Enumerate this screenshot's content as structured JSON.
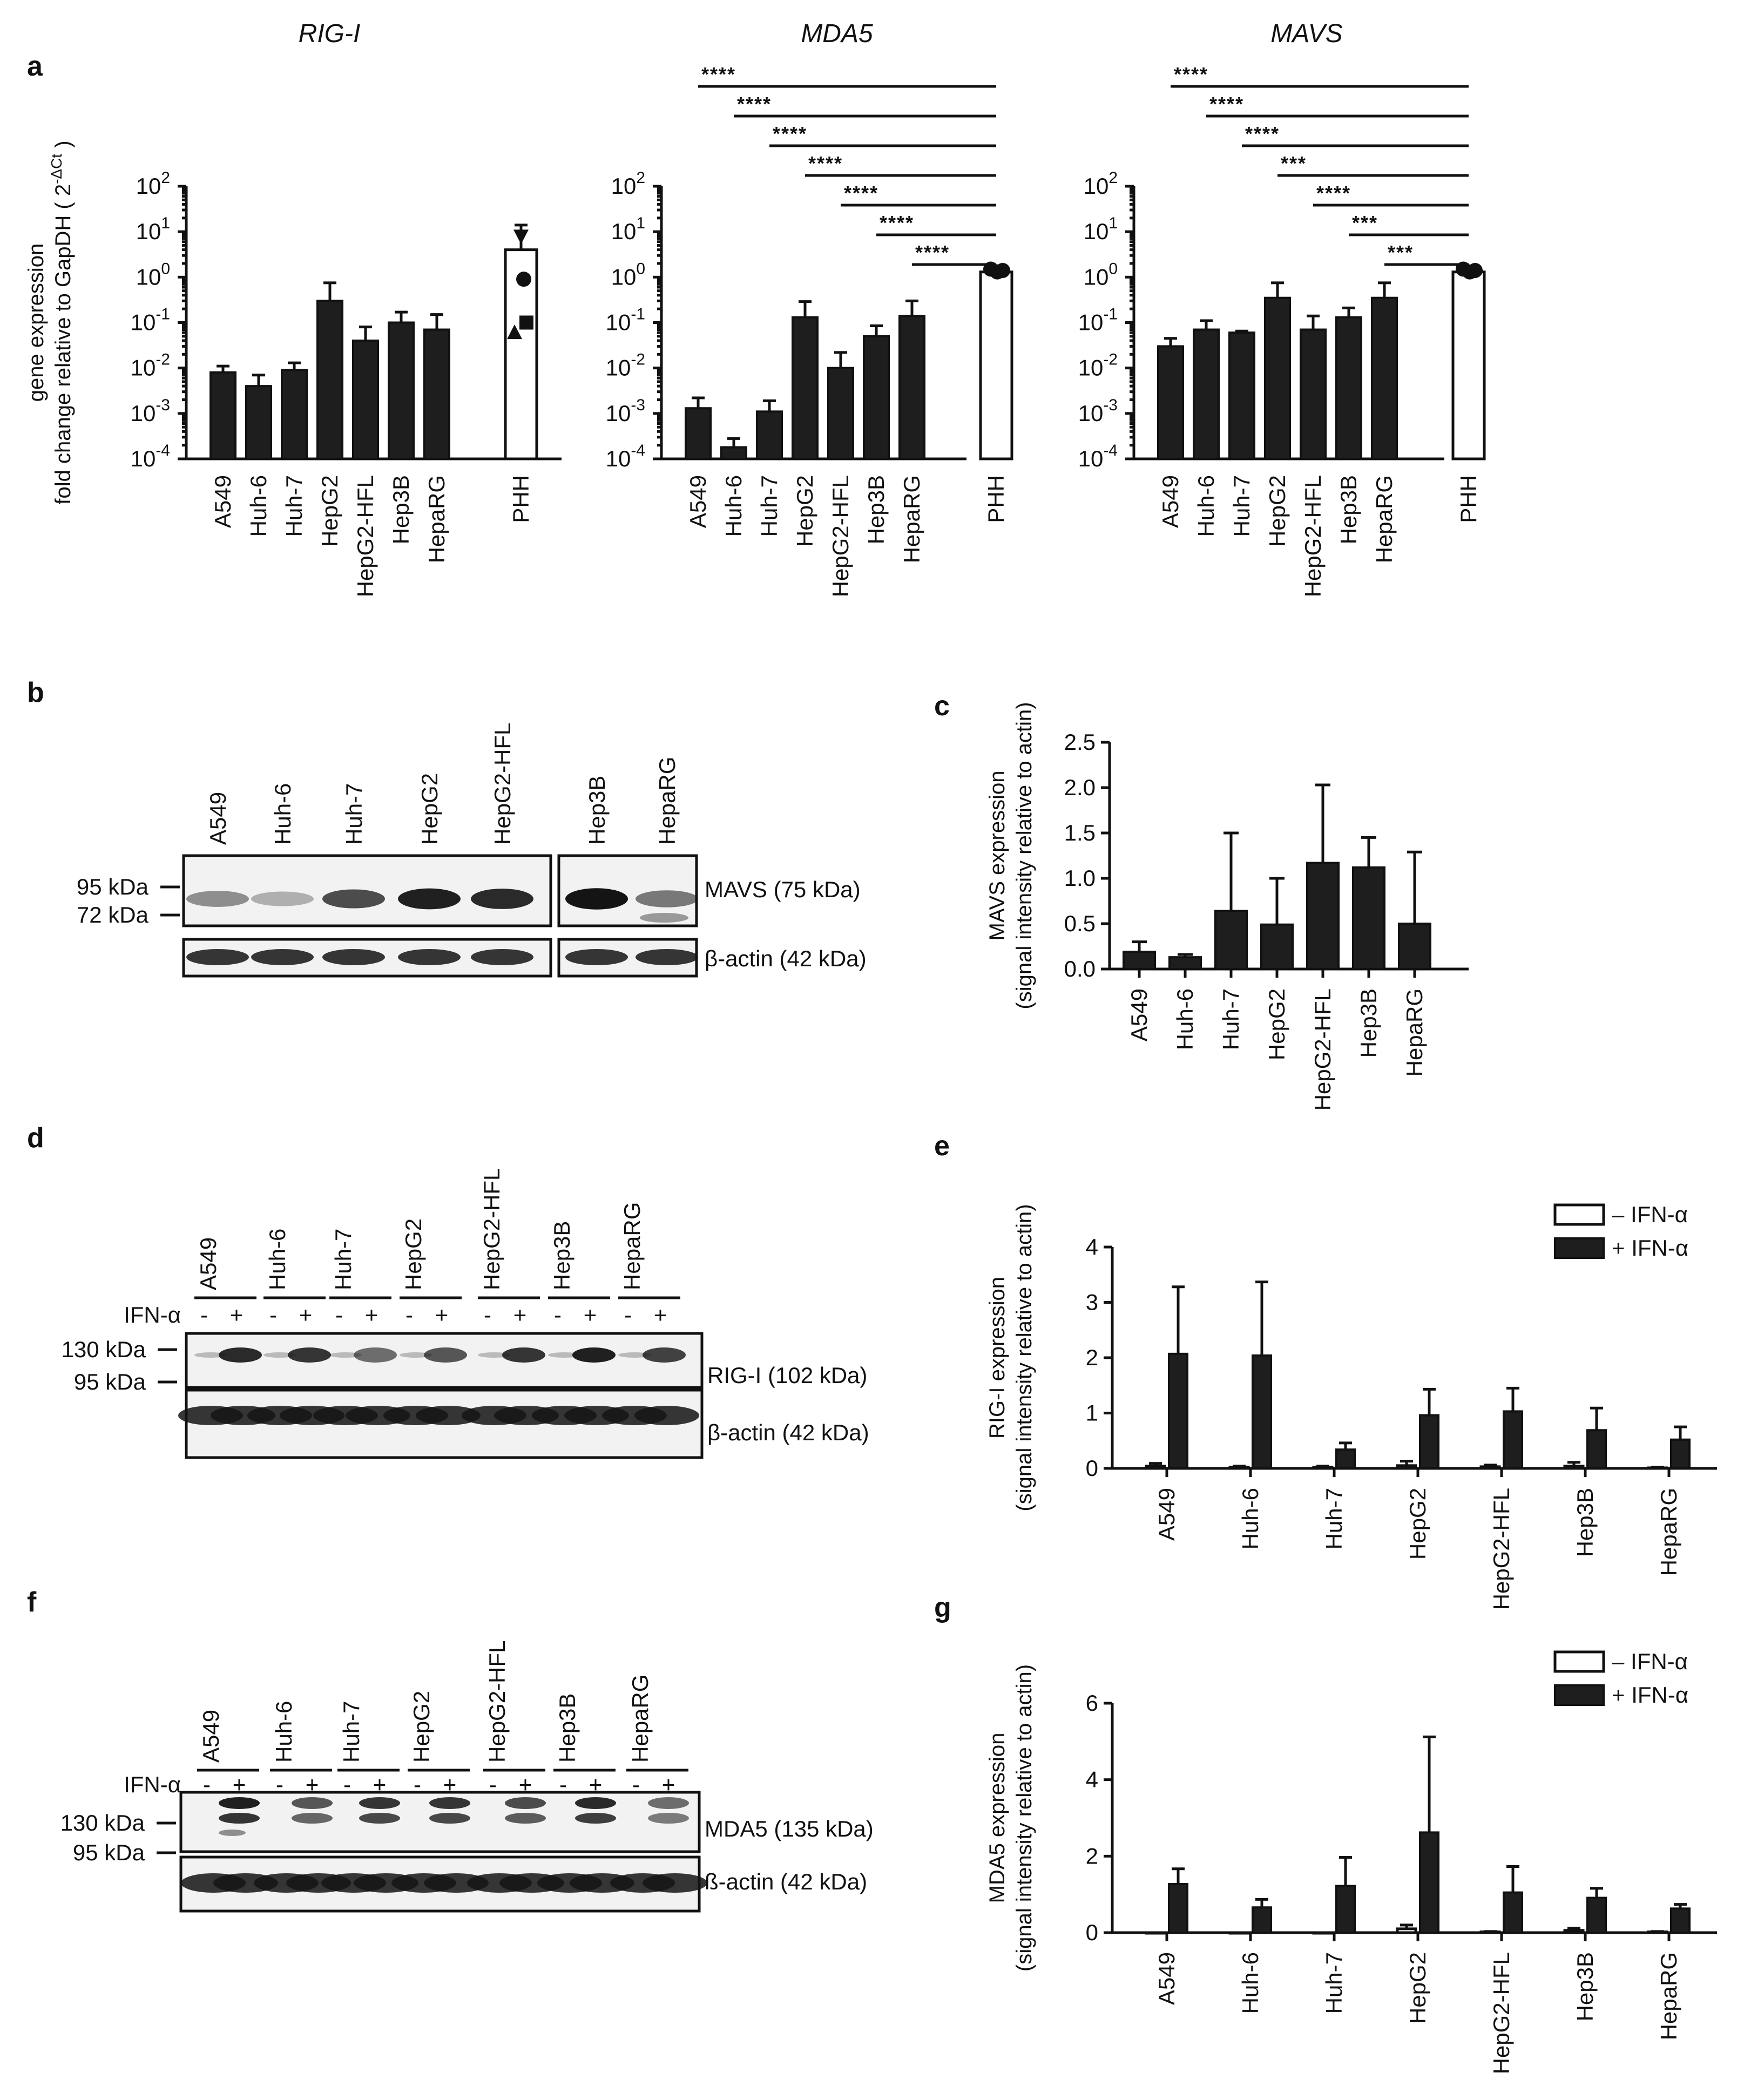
{
  "panels": {
    "a": {
      "letter": "a"
    },
    "b": {
      "letter": "b"
    },
    "c": {
      "letter": "c"
    },
    "d": {
      "letter": "d"
    },
    "e": {
      "letter": "e"
    },
    "f": {
      "letter": "f"
    },
    "g": {
      "letter": "g"
    }
  },
  "chart_data": [
    {
      "id": "a-rigi",
      "type": "bar",
      "scale": "log",
      "title": "RIG-I",
      "ylabel_line1": "gene expression",
      "ylabel_line2": "fold change relative to GapDH ( 2",
      "ylabel_sup": "-ΔCt",
      "ylabel_end": " )",
      "ylim": [
        0.0001,
        100
      ],
      "yticks": [
        {
          "base": "10",
          "exp": "2"
        },
        {
          "base": "10",
          "exp": "1"
        },
        {
          "base": "10",
          "exp": "0"
        },
        {
          "base": "10",
          "exp": "-1"
        },
        {
          "base": "10",
          "exp": "-2"
        },
        {
          "base": "10",
          "exp": "-3"
        },
        {
          "base": "10",
          "exp": "-4"
        }
      ],
      "categories": [
        "A549",
        "Huh-6",
        "Huh-7",
        "HepG2",
        "HepG2-HFL",
        "Hep3B",
        "HepaRG",
        "PHH"
      ],
      "values": [
        0.008,
        0.004,
        0.009,
        0.3,
        0.04,
        0.1,
        0.07,
        4.0
      ],
      "errors": [
        0.011,
        0.007,
        0.013,
        0.75,
        0.08,
        0.17,
        0.15,
        14.0
      ],
      "highlight": "PHH",
      "points": [
        8,
        0.9,
        0.06,
        0.1
      ]
    },
    {
      "id": "a-mda5",
      "type": "bar",
      "scale": "log",
      "title": "MDA5",
      "ylim": [
        0.0001,
        100
      ],
      "yticks": [
        {
          "base": "10",
          "exp": "2"
        },
        {
          "base": "10",
          "exp": "1"
        },
        {
          "base": "10",
          "exp": "0"
        },
        {
          "base": "10",
          "exp": "-1"
        },
        {
          "base": "10",
          "exp": "-2"
        },
        {
          "base": "10",
          "exp": "-3"
        },
        {
          "base": "10",
          "exp": "-4"
        }
      ],
      "categories": [
        "A549",
        "Huh-6",
        "Huh-7",
        "HepG2",
        "HepG2-HFL",
        "Hep3B",
        "HepaRG",
        "PHH"
      ],
      "values": [
        0.0013,
        0.00018,
        0.0011,
        0.13,
        0.01,
        0.05,
        0.14,
        1.3
      ],
      "errors": [
        0.0022,
        0.00028,
        0.0019,
        0.29,
        0.022,
        0.085,
        0.3,
        1.7
      ],
      "highlight": "PHH",
      "points": [
        1.5,
        1.3,
        1.4
      ],
      "significance": [
        {
          "from": "A549",
          "to": "PHH",
          "label": "****"
        },
        {
          "from": "Huh-6",
          "to": "PHH",
          "label": "****"
        },
        {
          "from": "Huh-7",
          "to": "PHH",
          "label": "****"
        },
        {
          "from": "HepG2",
          "to": "PHH",
          "label": "****"
        },
        {
          "from": "HepG2-HFL",
          "to": "PHH",
          "label": "****"
        },
        {
          "from": "Hep3B",
          "to": "PHH",
          "label": "****"
        },
        {
          "from": "HepaRG",
          "to": "PHH",
          "label": "****"
        }
      ]
    },
    {
      "id": "a-mavs",
      "type": "bar",
      "scale": "log",
      "title": "MAVS",
      "ylim": [
        0.0001,
        100
      ],
      "yticks": [
        {
          "base": "10",
          "exp": "2"
        },
        {
          "base": "10",
          "exp": "1"
        },
        {
          "base": "10",
          "exp": "0"
        },
        {
          "base": "10",
          "exp": "-1"
        },
        {
          "base": "10",
          "exp": "-2"
        },
        {
          "base": "10",
          "exp": "-3"
        },
        {
          "base": "10",
          "exp": "-4"
        }
      ],
      "categories": [
        "A549",
        "Huh-6",
        "Huh-7",
        "HepG2",
        "HepG2-HFL",
        "Hep3B",
        "HepaRG",
        "PHH"
      ],
      "values": [
        0.03,
        0.07,
        0.06,
        0.35,
        0.07,
        0.13,
        0.35,
        1.3
      ],
      "errors": [
        0.045,
        0.11,
        0.065,
        0.75,
        0.14,
        0.21,
        0.75,
        1.6
      ],
      "highlight": "PHH",
      "points": [
        1.5,
        1.3,
        1.4
      ],
      "significance": [
        {
          "from": "A549",
          "to": "PHH",
          "label": "****"
        },
        {
          "from": "Huh-6",
          "to": "PHH",
          "label": "****"
        },
        {
          "from": "Huh-7",
          "to": "PHH",
          "label": "****"
        },
        {
          "from": "HepG2",
          "to": "PHH",
          "label": "***"
        },
        {
          "from": "HepG2-HFL",
          "to": "PHH",
          "label": "****"
        },
        {
          "from": "Hep3B",
          "to": "PHH",
          "label": "***"
        },
        {
          "from": "HepaRG",
          "to": "PHH",
          "label": "***"
        }
      ]
    },
    {
      "id": "c-mavs",
      "type": "bar",
      "scale": "linear",
      "ylabel_line1": "MAVS expression",
      "ylabel_line2": "(signal intensity relative to actin)",
      "ylim": [
        0,
        2.5
      ],
      "yticks": [
        "0.0",
        "0.5",
        "1.0",
        "1.5",
        "2.0",
        "2.5"
      ],
      "categories": [
        "A549",
        "Huh-6",
        "Huh-7",
        "HepG2",
        "HepG2-HFL",
        "Hep3B",
        "HepaRG"
      ],
      "values": [
        0.19,
        0.13,
        0.64,
        0.49,
        1.17,
        1.12,
        0.5
      ],
      "errors": [
        0.3,
        0.16,
        1.5,
        1.0,
        2.03,
        1.45,
        1.29
      ]
    },
    {
      "id": "e-rigi",
      "type": "bar",
      "scale": "linear",
      "ylabel_line1": "RIG-I expression",
      "ylabel_line2": "(signal intensity relative to actin)",
      "ylim": [
        0,
        4
      ],
      "yticks": [
        "0",
        "1",
        "2",
        "3",
        "4"
      ],
      "categories": [
        "A549",
        "Huh-6",
        "Huh-7",
        "HepG2",
        "HepG2-HFL",
        "Hep3B",
        "HepaRG"
      ],
      "series": [
        {
          "name": "–  IFN-α",
          "values": [
            0.04,
            0.02,
            0.02,
            0.05,
            0.03,
            0.04,
            0.01
          ],
          "errors": [
            0.09,
            0.04,
            0.04,
            0.13,
            0.06,
            0.11,
            0.02
          ]
        },
        {
          "name": "+ IFN-α",
          "values": [
            2.07,
            2.04,
            0.34,
            0.96,
            1.03,
            0.69,
            0.52
          ],
          "errors": [
            3.28,
            3.37,
            0.46,
            1.43,
            1.45,
            1.09,
            0.75
          ]
        }
      ]
    },
    {
      "id": "g-mda5",
      "type": "bar",
      "scale": "linear",
      "ylabel_line1": "MDA5 expression",
      "ylabel_line2": "(signal intensity relative to actin)",
      "ylim": [
        0,
        6
      ],
      "yticks": [
        "0",
        "2",
        "4",
        "6"
      ],
      "categories": [
        "A549",
        "Huh-6",
        "Huh-7",
        "HepG2",
        "HepG2-HFL",
        "Hep3B",
        "HepaRG"
      ],
      "series": [
        {
          "name": "–  IFN-α",
          "values": [
            0.0,
            0.0,
            0.0,
            0.1,
            0.02,
            0.06,
            0.02
          ],
          "errors": [
            0.0,
            0.0,
            0.0,
            0.2,
            0.03,
            0.12,
            0.03
          ]
        },
        {
          "name": "+ IFN-α",
          "values": [
            1.27,
            0.66,
            1.22,
            2.62,
            1.05,
            0.91,
            0.63
          ],
          "errors": [
            1.67,
            0.87,
            1.97,
            5.12,
            1.73,
            1.16,
            0.74
          ]
        }
      ]
    }
  ],
  "blots": {
    "b": {
      "lanes": [
        "A549",
        "Huh-6",
        "Huh-7",
        "HepG2",
        "HepG2-HFL",
        "Hep3B",
        "HepaRG"
      ],
      "markers": [
        "95 kDa",
        "72 kDa"
      ],
      "band_label": "MAVS  (75 kDa)",
      "actin_label": "β-actin (42 kDa)"
    },
    "d": {
      "lanes": [
        "A549",
        "Huh-6",
        "Huh-7",
        "HepG2",
        "HepG2-HFL",
        "Hep3B",
        "HepaRG"
      ],
      "treatment": "IFN-α",
      "minus": "-",
      "plus": "+",
      "markers": [
        "130 kDa",
        "95 kDa"
      ],
      "band_label": "RIG-I (102 kDa)",
      "actin_label": "β-actin (42 kDa)"
    },
    "f": {
      "lanes": [
        "A549",
        "Huh-6",
        "Huh-7",
        "HepG2",
        "HepG2-HFL",
        "Hep3B",
        "HepaRG"
      ],
      "treatment": "IFN-α",
      "minus": "-",
      "plus": "+",
      "markers": [
        "130 kDa",
        "95 kDa"
      ],
      "band_label": "MDA5  (135 kDa)",
      "actin_label": "ß-actin (42 kDa)"
    }
  },
  "colors": {
    "bar_dark": "#1e1e1e",
    "bar_light": "#ffffff",
    "blot_bg": "#f2f2f2",
    "band": "#141414"
  }
}
